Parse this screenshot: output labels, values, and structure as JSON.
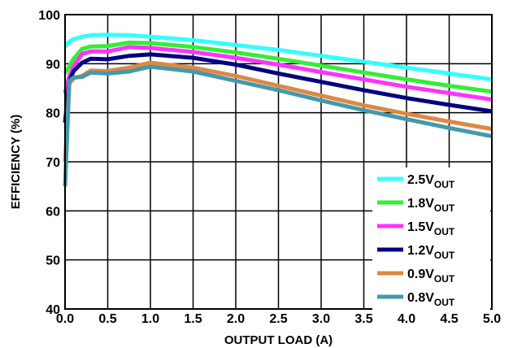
{
  "chart_data": {
    "type": "line",
    "xlabel": "OUTPUT LOAD (A)",
    "ylabel": "EFFICIENCY (%)",
    "xlim": [
      0,
      5
    ],
    "ylim": [
      40,
      100
    ],
    "x_ticks": [
      "0.0",
      "0.5",
      "1.0",
      "1.5",
      "2.0",
      "2.5",
      "3.0",
      "3.5",
      "4.0",
      "4.5",
      "5.0"
    ],
    "y_ticks": [
      "40",
      "50",
      "60",
      "70",
      "80",
      "90",
      "100"
    ],
    "grid": true,
    "legend_position": "bottom-right",
    "series": [
      {
        "name": "2.5V",
        "name_sub": "OUT",
        "color": "#33ffff",
        "points": [
          [
            0.0,
            93.5
          ],
          [
            0.05,
            94.5
          ],
          [
            0.1,
            95.0
          ],
          [
            0.2,
            95.5
          ],
          [
            0.3,
            95.8
          ],
          [
            0.5,
            95.9
          ],
          [
            0.75,
            95.8
          ],
          [
            1.0,
            95.5
          ],
          [
            1.5,
            94.8
          ],
          [
            2.0,
            93.8
          ],
          [
            2.5,
            92.8
          ],
          [
            3.0,
            91.6
          ],
          [
            3.5,
            90.4
          ],
          [
            4.0,
            89.2
          ],
          [
            4.5,
            88.0
          ],
          [
            5.0,
            86.8
          ]
        ]
      },
      {
        "name": "1.8V",
        "name_sub": "OUT",
        "color": "#33ee33",
        "points": [
          [
            0.0,
            88.0
          ],
          [
            0.05,
            89.5
          ],
          [
            0.1,
            91.0
          ],
          [
            0.2,
            93.0
          ],
          [
            0.3,
            93.5
          ],
          [
            0.5,
            93.6
          ],
          [
            0.75,
            94.3
          ],
          [
            1.0,
            94.2
          ],
          [
            1.5,
            93.4
          ],
          [
            2.0,
            92.3
          ],
          [
            2.5,
            91.0
          ],
          [
            3.0,
            89.6
          ],
          [
            3.5,
            88.2
          ],
          [
            4.0,
            86.8
          ],
          [
            4.5,
            85.5
          ],
          [
            5.0,
            84.3
          ]
        ]
      },
      {
        "name": "1.5V",
        "name_sub": "OUT",
        "color": "#ff33ff",
        "points": [
          [
            0.0,
            84.0
          ],
          [
            0.05,
            87.5
          ],
          [
            0.1,
            89.5
          ],
          [
            0.2,
            92.0
          ],
          [
            0.3,
            92.5
          ],
          [
            0.5,
            92.5
          ],
          [
            0.75,
            93.4
          ],
          [
            1.0,
            93.2
          ],
          [
            1.5,
            92.4
          ],
          [
            2.0,
            91.2
          ],
          [
            2.5,
            89.8
          ],
          [
            3.0,
            88.3
          ],
          [
            3.5,
            86.8
          ],
          [
            4.0,
            85.3
          ],
          [
            4.5,
            84.0
          ],
          [
            5.0,
            82.7
          ]
        ]
      },
      {
        "name": "1.2V",
        "name_sub": "OUT",
        "color": "#000080",
        "points": [
          [
            0.0,
            78.0
          ],
          [
            0.05,
            86.5
          ],
          [
            0.1,
            88.5
          ],
          [
            0.2,
            90.2
          ],
          [
            0.3,
            91.0
          ],
          [
            0.5,
            90.9
          ],
          [
            0.75,
            91.6
          ],
          [
            1.0,
            91.9
          ],
          [
            1.5,
            91.2
          ],
          [
            2.0,
            89.8
          ],
          [
            2.5,
            88.0
          ],
          [
            3.0,
            86.3
          ],
          [
            3.5,
            84.6
          ],
          [
            4.0,
            83.0
          ],
          [
            4.5,
            81.6
          ],
          [
            5.0,
            80.3
          ]
        ]
      },
      {
        "name": "0.9V",
        "name_sub": "OUT",
        "color": "#dd8844",
        "points": [
          [
            0.0,
            70.0
          ],
          [
            0.05,
            86.0
          ],
          [
            0.1,
            87.0
          ],
          [
            0.2,
            87.5
          ],
          [
            0.3,
            88.6
          ],
          [
            0.5,
            88.5
          ],
          [
            0.75,
            89.2
          ],
          [
            1.0,
            90.2
          ],
          [
            1.5,
            89.2
          ],
          [
            2.0,
            87.5
          ],
          [
            2.5,
            85.5
          ],
          [
            3.0,
            83.5
          ],
          [
            3.5,
            81.5
          ],
          [
            4.0,
            79.8
          ],
          [
            4.5,
            78.2
          ],
          [
            5.0,
            76.7
          ]
        ]
      },
      {
        "name": "0.8V",
        "name_sub": "OUT",
        "color": "#4499aa",
        "points": [
          [
            0.0,
            65.0
          ],
          [
            0.05,
            86.5
          ],
          [
            0.1,
            87.2
          ],
          [
            0.2,
            87.3
          ],
          [
            0.3,
            88.2
          ],
          [
            0.5,
            88.0
          ],
          [
            0.75,
            88.4
          ],
          [
            1.0,
            89.4
          ],
          [
            1.5,
            88.4
          ],
          [
            2.0,
            86.5
          ],
          [
            2.5,
            84.6
          ],
          [
            3.0,
            82.5
          ],
          [
            3.5,
            80.5
          ],
          [
            4.0,
            78.7
          ],
          [
            4.5,
            76.9
          ],
          [
            5.0,
            75.2
          ]
        ]
      }
    ]
  }
}
